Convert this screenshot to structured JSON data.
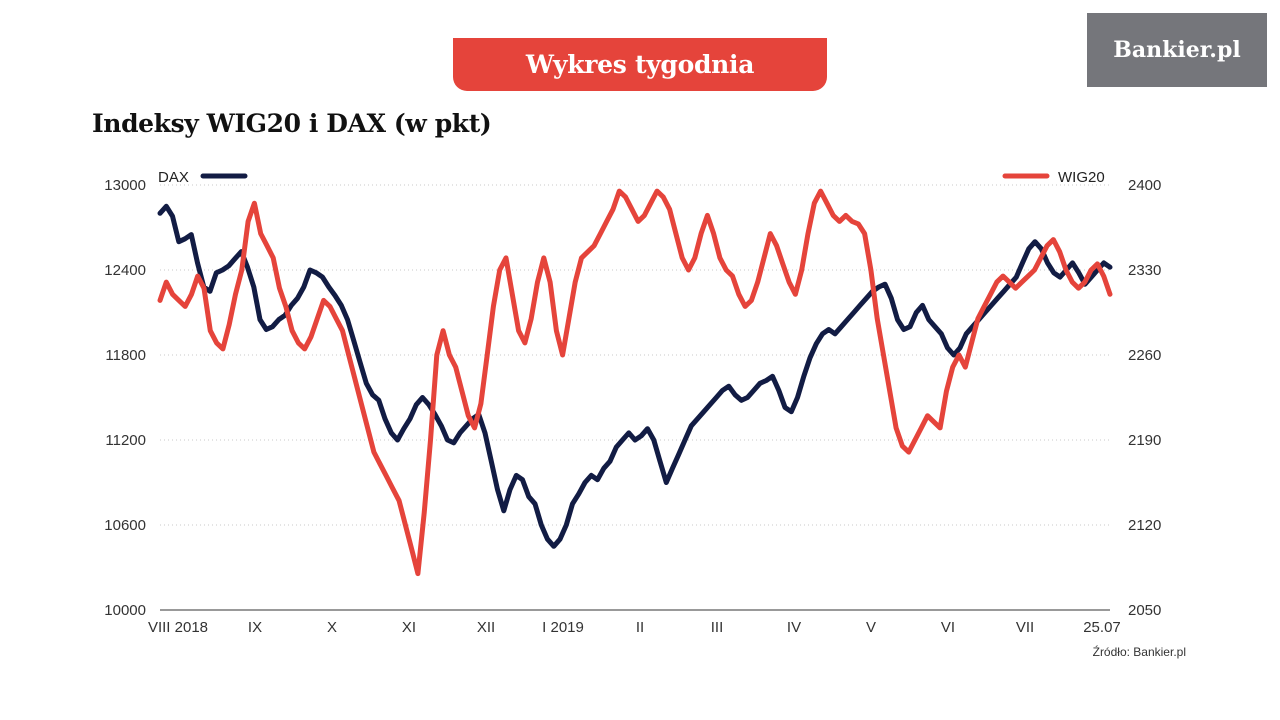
{
  "header": {
    "banner_text": "Wykres tygodnia",
    "logo_text": "Bankier.pl"
  },
  "source_text": "Źródło: Bankier.pl",
  "colors": {
    "dax": "#121c44",
    "wig20": "#e5443b",
    "banner": "#e5443b",
    "logo_bg": "#75767b"
  },
  "chart_data": {
    "type": "line",
    "title": "Indeksy WIG20 i DAX (w pkt)",
    "legend": [
      "DAX",
      "WIG20"
    ],
    "x_ticks": [
      "VIII 2018",
      "IX",
      "X",
      "XI",
      "XII",
      "I 2019",
      "II",
      "III",
      "IV",
      "V",
      "VI",
      "VII",
      "25.07"
    ],
    "y_left": {
      "ticks": [
        "13000",
        "12400",
        "11800",
        "11200",
        "10600",
        "10000"
      ],
      "min": 10000,
      "max": 13000
    },
    "y_right": {
      "ticks": [
        "2400",
        "2330",
        "2260",
        "2190",
        "2120",
        "2050"
      ],
      "min": 2050,
      "max": 2400
    },
    "grid": "horizontal dotted",
    "series": [
      {
        "name": "DAX",
        "axis": "left",
        "values": [
          12800,
          12850,
          12780,
          12600,
          12620,
          12650,
          12450,
          12280,
          12250,
          12380,
          12400,
          12430,
          12480,
          12530,
          12420,
          12280,
          12050,
          11980,
          12000,
          12050,
          12080,
          12150,
          12200,
          12280,
          12400,
          12380,
          12350,
          12280,
          12220,
          12150,
          12050,
          11900,
          11750,
          11600,
          11520,
          11480,
          11350,
          11250,
          11200,
          11280,
          11350,
          11450,
          11500,
          11450,
          11380,
          11300,
          11200,
          11180,
          11250,
          11300,
          11350,
          11380,
          11250,
          11050,
          10850,
          10700,
          10850,
          10950,
          10920,
          10800,
          10750,
          10600,
          10500,
          10450,
          10500,
          10600,
          10750,
          10820,
          10900,
          10950,
          10920,
          11000,
          11050,
          11150,
          11200,
          11250,
          11200,
          11230,
          11280,
          11200,
          11050,
          10900,
          11000,
          11100,
          11200,
          11300,
          11350,
          11400,
          11450,
          11500,
          11550,
          11580,
          11520,
          11480,
          11500,
          11550,
          11600,
          11620,
          11650,
          11550,
          11430,
          11400,
          11500,
          11650,
          11780,
          11880,
          11950,
          11980,
          11950,
          12000,
          12050,
          12100,
          12150,
          12200,
          12250,
          12280,
          12300,
          12200,
          12050,
          11980,
          12000,
          12100,
          12150,
          12050,
          12000,
          11950,
          11850,
          11800,
          11850,
          11950,
          12000,
          12050,
          12100,
          12150,
          12200,
          12250,
          12300,
          12350,
          12450,
          12550,
          12600,
          12550,
          12450,
          12380,
          12350,
          12400,
          12450,
          12380,
          12300,
          12350,
          12400,
          12450,
          12420
        ]
      },
      {
        "name": "WIG20",
        "axis": "right",
        "values": [
          2305,
          2320,
          2310,
          2305,
          2300,
          2310,
          2325,
          2315,
          2280,
          2270,
          2265,
          2285,
          2310,
          2330,
          2370,
          2385,
          2360,
          2350,
          2340,
          2315,
          2300,
          2280,
          2270,
          2265,
          2275,
          2290,
          2305,
          2300,
          2290,
          2280,
          2260,
          2240,
          2220,
          2200,
          2180,
          2170,
          2160,
          2150,
          2140,
          2120,
          2100,
          2080,
          2130,
          2190,
          2260,
          2280,
          2260,
          2250,
          2230,
          2210,
          2200,
          2220,
          2260,
          2300,
          2330,
          2340,
          2310,
          2280,
          2270,
          2290,
          2320,
          2340,
          2320,
          2280,
          2260,
          2290,
          2320,
          2340,
          2345,
          2350,
          2360,
          2370,
          2380,
          2395,
          2390,
          2380,
          2370,
          2375,
          2385,
          2395,
          2390,
          2380,
          2360,
          2340,
          2330,
          2340,
          2360,
          2375,
          2360,
          2340,
          2330,
          2325,
          2310,
          2300,
          2305,
          2320,
          2340,
          2360,
          2350,
          2335,
          2320,
          2310,
          2330,
          2360,
          2385,
          2395,
          2385,
          2375,
          2370,
          2375,
          2370,
          2368,
          2360,
          2330,
          2290,
          2260,
          2230,
          2200,
          2185,
          2180,
          2190,
          2200,
          2210,
          2205,
          2200,
          2230,
          2250,
          2260,
          2250,
          2270,
          2290,
          2300,
          2310,
          2320,
          2325,
          2320,
          2315,
          2320,
          2325,
          2330,
          2340,
          2350,
          2355,
          2345,
          2330,
          2320,
          2315,
          2320,
          2330,
          2335,
          2325,
          2310
        ]
      }
    ]
  }
}
